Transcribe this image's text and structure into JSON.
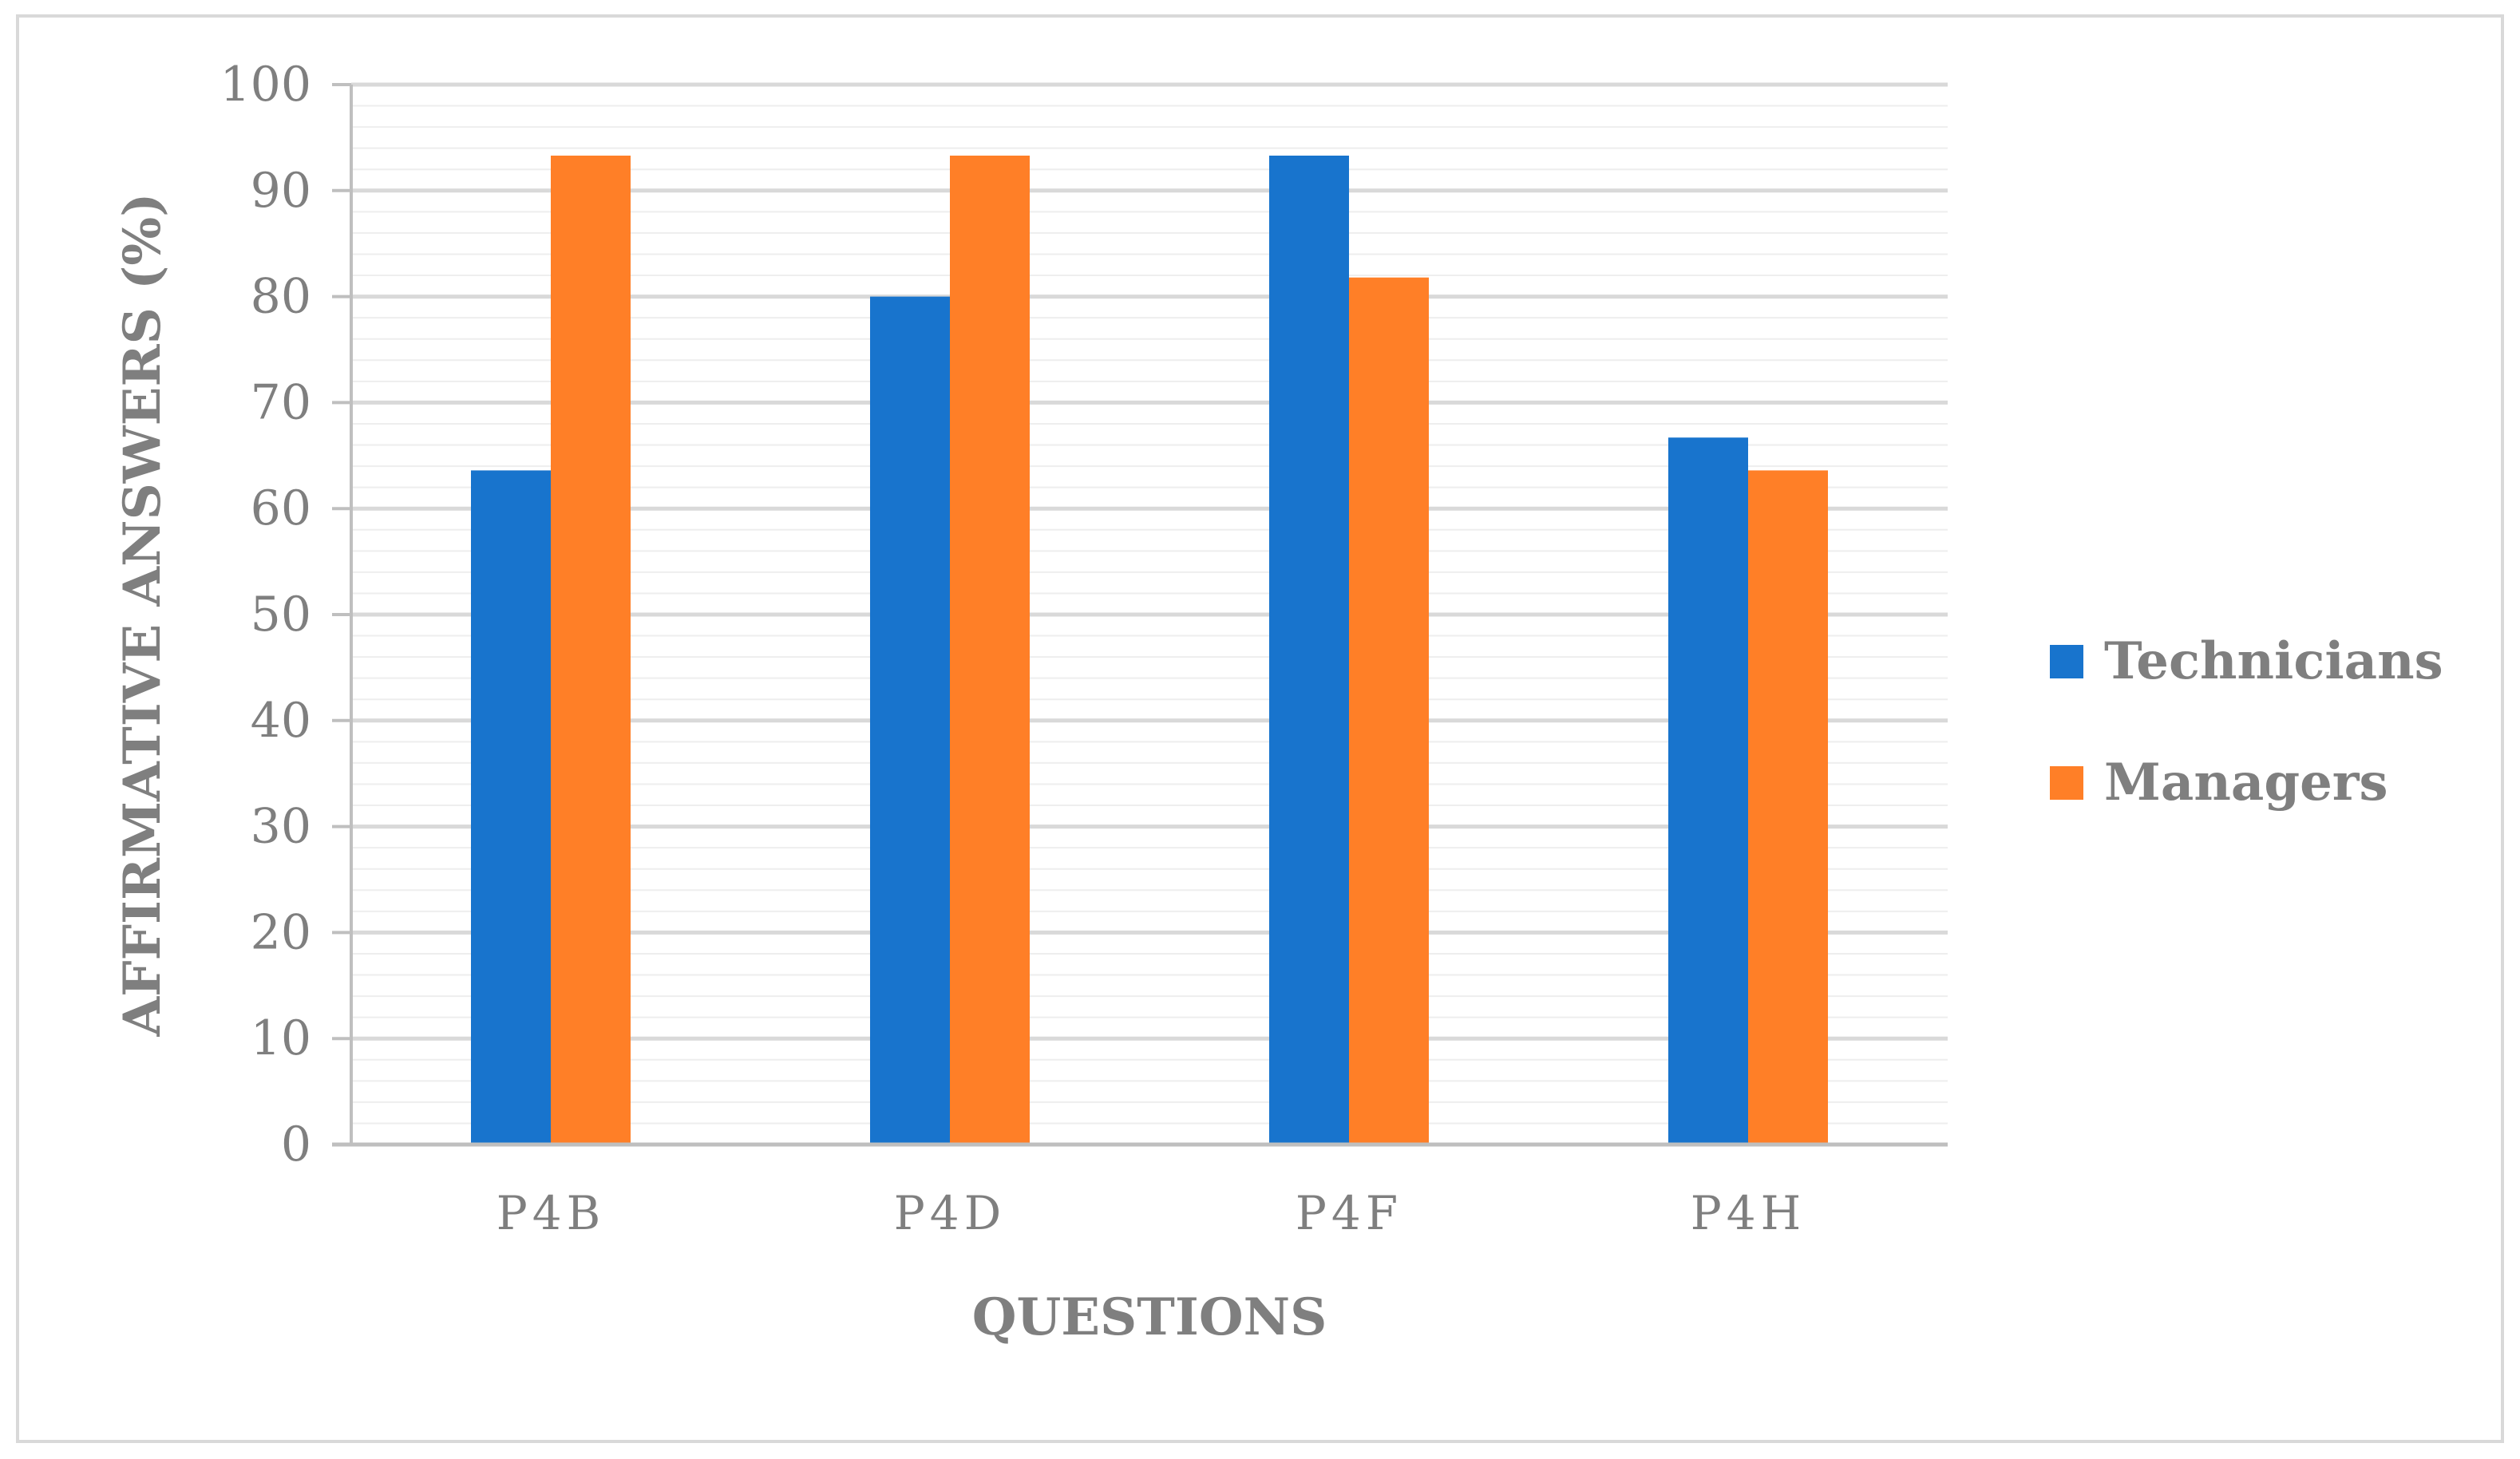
{
  "chart_data": {
    "type": "bar",
    "title": "",
    "xlabel": "QUESTIONS",
    "ylabel": "AFFIRMATIVE ANSWERS (%)",
    "categories": [
      "P4B",
      "P4D",
      "P4F",
      "P4H"
    ],
    "series": [
      {
        "name": "Technicians",
        "color": "#1874CD",
        "values": [
          63.6,
          80.0,
          93.3,
          66.7
        ]
      },
      {
        "name": "Managers",
        "color": "#FF7F27",
        "values": [
          93.3,
          93.3,
          81.8,
          63.6
        ]
      }
    ],
    "ylim": [
      0,
      100
    ],
    "yticks": [
      "0",
      "10",
      "20",
      "30",
      "40",
      "50",
      "60",
      "70",
      "80",
      "90",
      "100"
    ],
    "grid": true,
    "legend_position": "right"
  }
}
